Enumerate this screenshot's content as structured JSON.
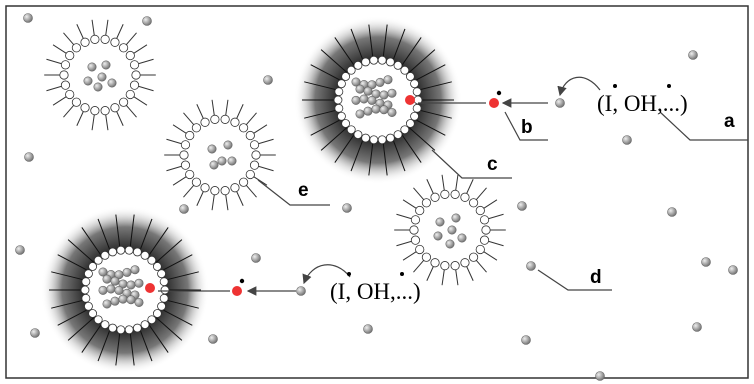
{
  "formulas": [
    "(I, OH,...)",
    "(I, OH,...)"
  ],
  "labels": [
    "a",
    "b",
    "c",
    "d",
    "e"
  ]
}
